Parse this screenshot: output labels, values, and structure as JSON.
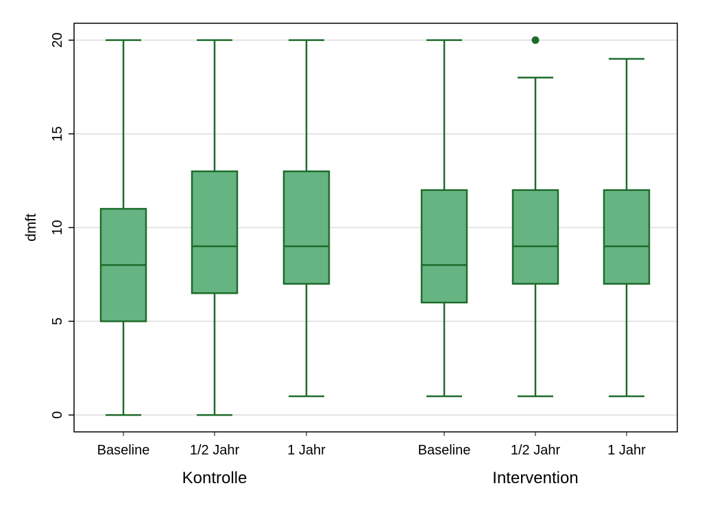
{
  "chart_data": {
    "type": "box",
    "ylabel": "dmft",
    "ylim": [
      -0.9,
      20.9
    ],
    "yticks": [
      0,
      5,
      10,
      15,
      20
    ],
    "grid": true,
    "legend": "none",
    "colors": {
      "box_fill": "#66b482",
      "line": "#1e6b2a",
      "grid": "#dcdcdc",
      "frame": "#000000"
    },
    "groups": [
      {
        "name": "Kontrolle",
        "boxes": [
          {
            "label": "Baseline",
            "min": 0,
            "q1": 5,
            "median": 8,
            "q3": 11,
            "max": 20,
            "outliers": []
          },
          {
            "label": "1/2 Jahr",
            "min": 0,
            "q1": 6.5,
            "median": 9,
            "q3": 13,
            "max": 20,
            "outliers": []
          },
          {
            "label": "1 Jahr",
            "min": 1,
            "q1": 7,
            "median": 9,
            "q3": 13,
            "max": 20,
            "outliers": []
          }
        ]
      },
      {
        "name": "Intervention",
        "boxes": [
          {
            "label": "Baseline",
            "min": 1,
            "q1": 6,
            "median": 8,
            "q3": 12,
            "max": 20,
            "outliers": []
          },
          {
            "label": "1/2 Jahr",
            "min": 1,
            "q1": 7,
            "median": 9,
            "q3": 12,
            "max": 18,
            "outliers": [
              20
            ]
          },
          {
            "label": "1 Jahr",
            "min": 1,
            "q1": 7,
            "median": 9,
            "q3": 12,
            "max": 19,
            "outliers": []
          }
        ]
      }
    ]
  }
}
